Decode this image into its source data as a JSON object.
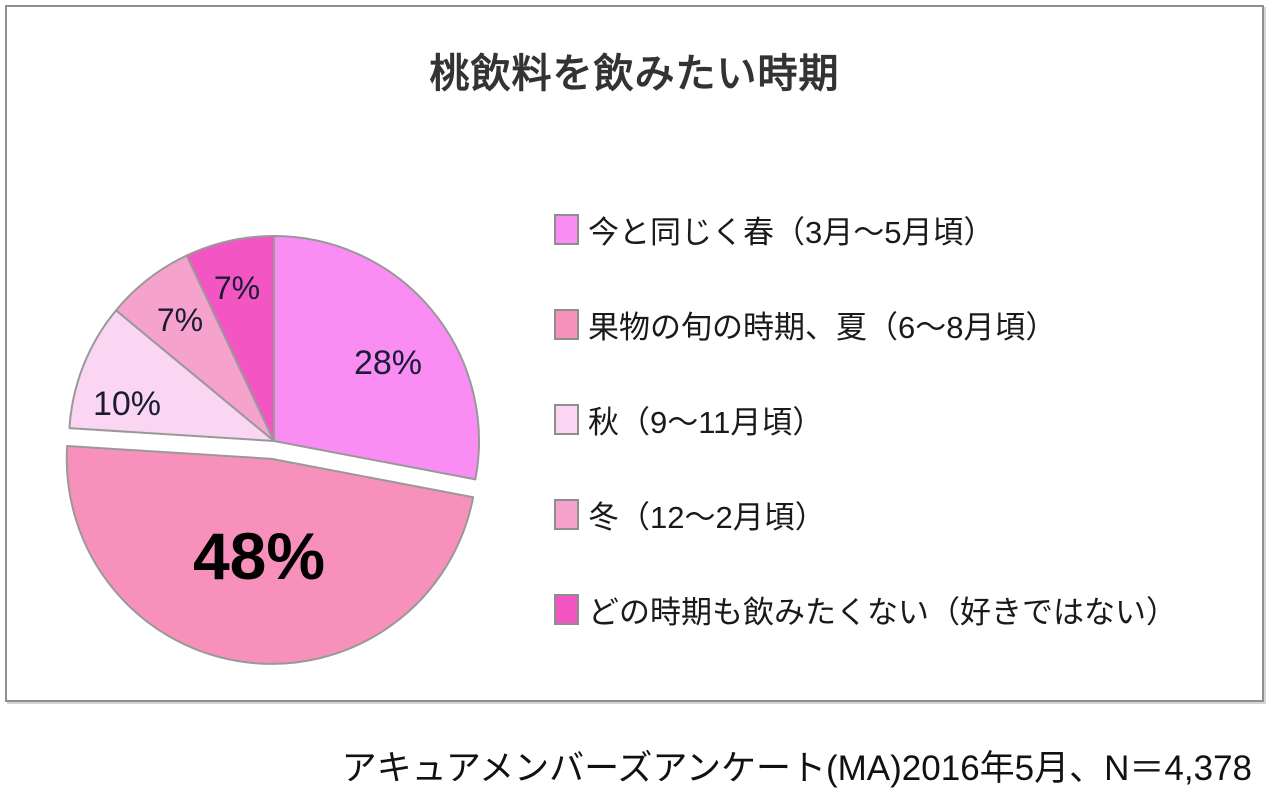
{
  "title": "桃飲料を飲みたい時期",
  "caption": "アキュアメンバーズアンケート(MA)2016年5月、N＝4,378",
  "colors": {
    "panel_border": "#8f8f8f",
    "slice_stroke": "#999999",
    "small_label_text": "#1b1b35",
    "big_label_text": "#000000",
    "title_text": "#333333",
    "legend_text": "#1a1a1a"
  },
  "chart_data": {
    "type": "pie",
    "title": "桃飲料を飲みたい時期",
    "start_angle_deg": 0,
    "direction": "clockwise",
    "legend_position": "right",
    "total_percent": 100,
    "series": [
      {
        "label": "今と同じく春（3月～5月頃）",
        "value": 28,
        "unit": "%",
        "data_label": "28%",
        "color": "#F98DF3",
        "exploded": false
      },
      {
        "label": "果物の旬の時期、夏（6～8月頃）",
        "value": 48,
        "unit": "%",
        "data_label": "48%",
        "color": "#F890BC",
        "exploded": true
      },
      {
        "label": "秋（9～11月頃）",
        "value": 10,
        "unit": "%",
        "data_label": "10%",
        "color": "#FBD6F3",
        "exploded": false
      },
      {
        "label": "冬（12～2月頃）",
        "value": 7,
        "unit": "%",
        "data_label": "7%",
        "color": "#F5A3CD",
        "exploded": false
      },
      {
        "label": "どの時期も飲みたくない（好きではない）",
        "value": 7,
        "unit": "%",
        "data_label": "7%",
        "color": "#F355C2",
        "exploded": false
      }
    ],
    "source_note": "アキュアメンバーズアンケート(MA)2016年5月、N＝4,378"
  }
}
